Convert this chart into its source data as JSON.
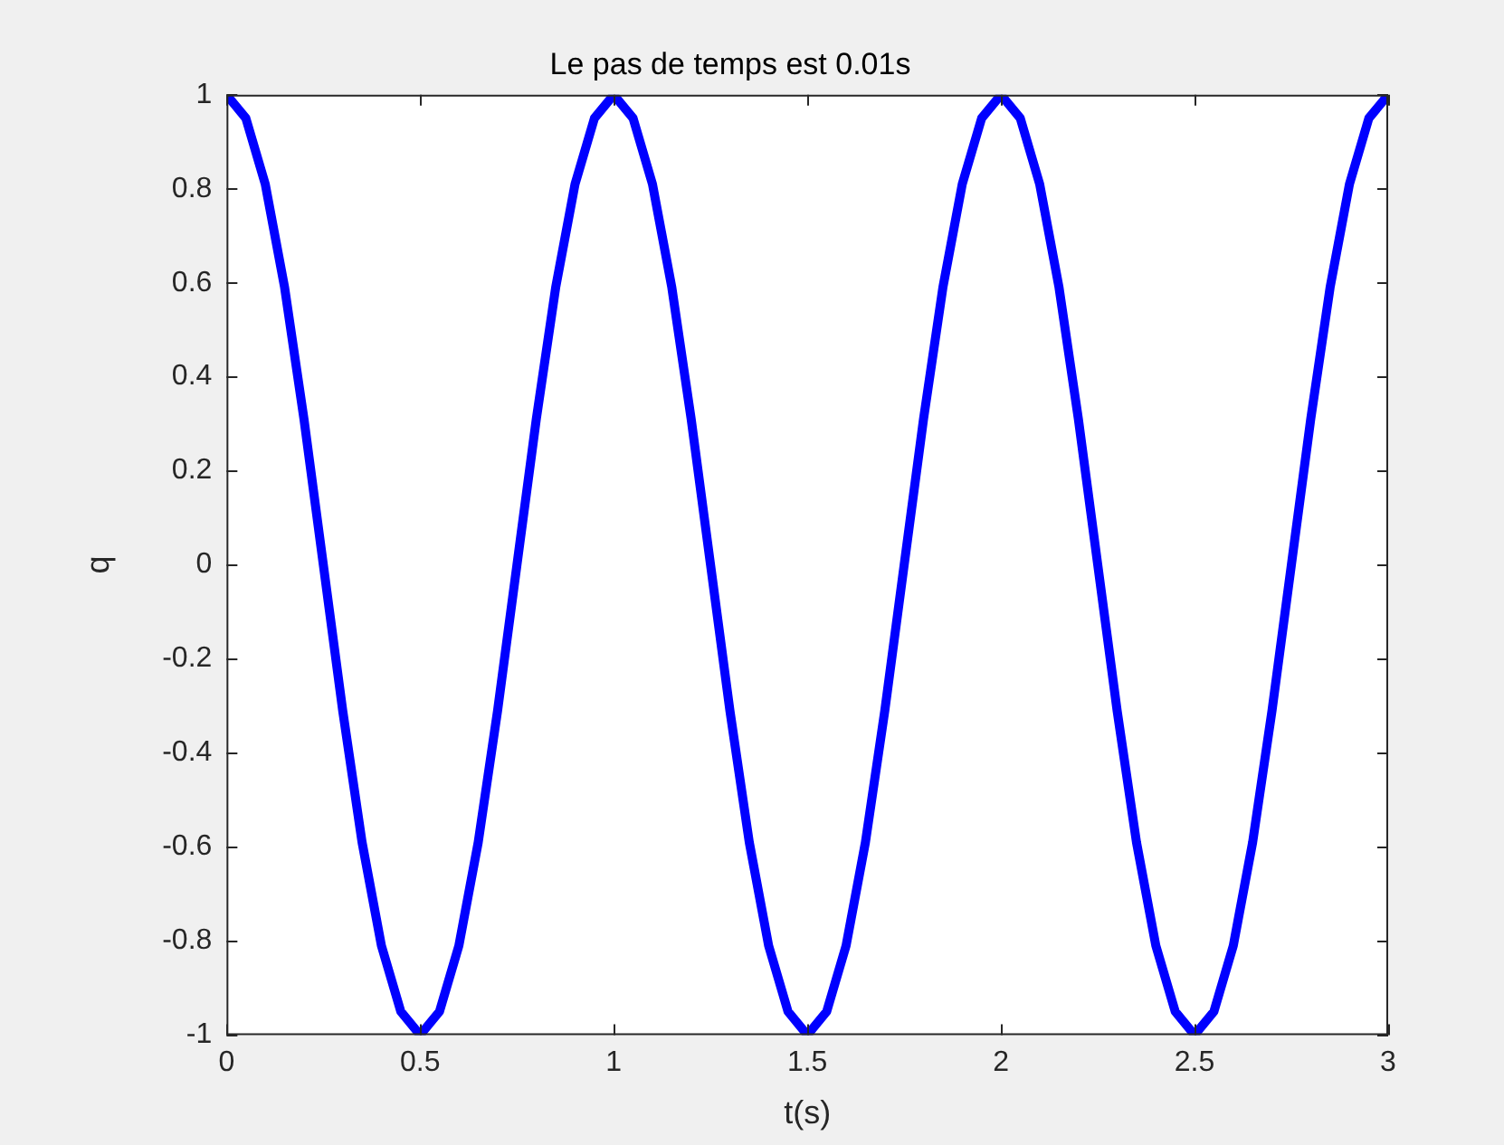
{
  "chart_data": {
    "type": "line",
    "title": "Le pas de temps est 0.01s",
    "xlabel": "t(s)",
    "ylabel": "q",
    "x": [
      0,
      0.05,
      0.1,
      0.15,
      0.2,
      0.25,
      0.3,
      0.35,
      0.4,
      0.45,
      0.5,
      0.55,
      0.6,
      0.65,
      0.7,
      0.75,
      0.8,
      0.85,
      0.9,
      0.95,
      1,
      1.05,
      1.1,
      1.15,
      1.2,
      1.25,
      1.3,
      1.35,
      1.4,
      1.45,
      1.5,
      1.55,
      1.6,
      1.65,
      1.7,
      1.75,
      1.8,
      1.85,
      1.9,
      1.95,
      2,
      2.05,
      2.1,
      2.15,
      2.2,
      2.25,
      2.3,
      2.35,
      2.4,
      2.45,
      2.5,
      2.55,
      2.6,
      2.65,
      2.7,
      2.75,
      2.8,
      2.85,
      2.9,
      2.95,
      3
    ],
    "series": [
      {
        "color": "#0000ff",
        "values": [
          1,
          0.95,
          0.81,
          0.59,
          0.31,
          0,
          -0.31,
          -0.59,
          -0.81,
          -0.95,
          -1,
          -0.95,
          -0.81,
          -0.59,
          -0.31,
          0,
          0.31,
          0.59,
          0.81,
          0.95,
          1,
          0.95,
          0.81,
          0.59,
          0.31,
          0,
          -0.31,
          -0.59,
          -0.81,
          -0.95,
          -1,
          -0.95,
          -0.81,
          -0.59,
          -0.31,
          0,
          0.31,
          0.59,
          0.81,
          0.95,
          1,
          0.95,
          0.81,
          0.59,
          0.31,
          0,
          -0.31,
          -0.59,
          -0.81,
          -0.95,
          -1,
          -0.95,
          -0.81,
          -0.59,
          -0.31,
          0,
          0.31,
          0.59,
          0.81,
          0.95,
          1
        ]
      }
    ],
    "xlim": [
      0,
      3
    ],
    "xticks": [
      0,
      0.5,
      1,
      1.5,
      2,
      2.5,
      3
    ],
    "ylim": [
      -1,
      1
    ],
    "yticks": [
      -1,
      -0.8,
      -0.6,
      -0.4,
      -0.2,
      0,
      0.2,
      0.4,
      0.6,
      0.8,
      1
    ],
    "grid": false,
    "legend": false,
    "marker": "none",
    "line_style": "solid"
  }
}
